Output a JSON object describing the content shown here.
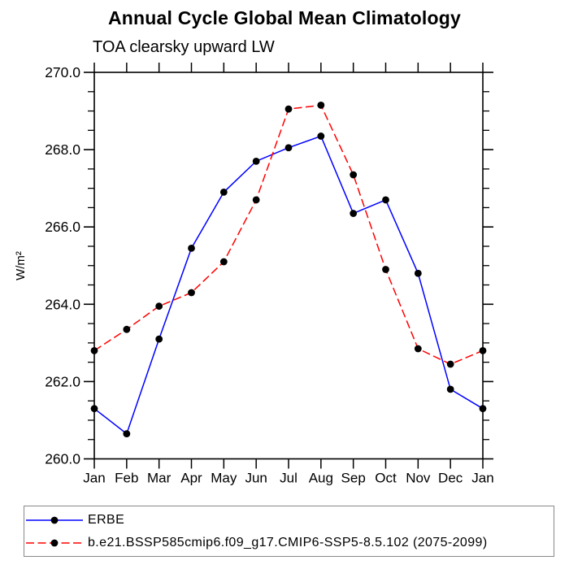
{
  "chart": {
    "title": "Annual Cycle Global Mean Climatology",
    "subtitle": "TOA clearsky upward LW",
    "ylabel": "W/m²"
  },
  "chart_data": {
    "type": "line",
    "title": "Annual Cycle Global Mean Climatology",
    "subtitle": "TOA clearsky upward LW",
    "xlabel": "",
    "ylabel": "W/m²",
    "categories": [
      "Jan",
      "Feb",
      "Mar",
      "Apr",
      "May",
      "Jun",
      "Jul",
      "Aug",
      "Sep",
      "Oct",
      "Nov",
      "Dec",
      "Jan"
    ],
    "ylim": [
      260.0,
      270.0
    ],
    "ytick_major": 2.0,
    "ytick_minor": 0.5,
    "ytick_format_decimals": 1,
    "grid": false,
    "legend_position": "bottom-left",
    "axis_color": "#000000",
    "marker_color": "#000000",
    "series": [
      {
        "id": "erbe",
        "name": "ERBE",
        "color": "#0000ff",
        "dash": "solid",
        "marker": "circle",
        "values": [
          261.3,
          260.65,
          263.1,
          265.45,
          266.9,
          267.7,
          268.05,
          268.35,
          266.35,
          266.7,
          264.8,
          261.8,
          261.3
        ]
      },
      {
        "id": "model",
        "name": "b.e21.BSSP585cmip6.f09_g17.CMIP6-SSP5-8.5.102 (2075-2099)",
        "color": "#ff0000",
        "dash": "dashed",
        "marker": "circle",
        "values": [
          262.8,
          263.35,
          263.95,
          264.3,
          265.1,
          266.7,
          269.05,
          269.15,
          267.35,
          264.9,
          262.85,
          262.45,
          262.8
        ]
      }
    ]
  }
}
